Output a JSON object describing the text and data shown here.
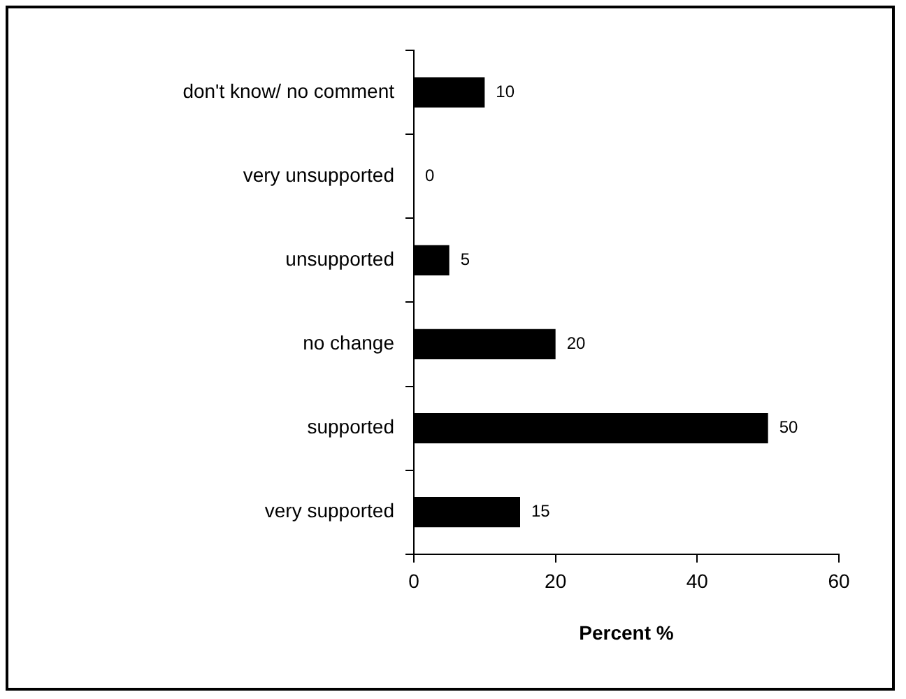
{
  "chart_data": {
    "type": "bar",
    "orientation": "horizontal",
    "xlabel": "Percent %",
    "categories": [
      "don't know/ no comment",
      "very unsupported",
      "unsupported",
      "no change",
      "supported",
      "very supported"
    ],
    "values": [
      10,
      0,
      5,
      20,
      50,
      15
    ],
    "color": "#000000",
    "xlim": [
      0,
      60
    ],
    "xticks": [
      0,
      20,
      40,
      60
    ],
    "data_labels": true
  }
}
